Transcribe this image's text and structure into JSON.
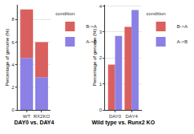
{
  "chart_data": [
    {
      "type": "bar",
      "x_label": "DAY0 vs. DAY4",
      "y_label": "Percentage of genome (%)",
      "categories": [
        "WT",
        "RX2KO"
      ],
      "stacked": true,
      "grid": true,
      "legend_title": "condition",
      "series": [
        {
          "name": "A->B",
          "color": "#8B80E6",
          "values": [
            4.6,
            2.9
          ]
        },
        {
          "name": "B->A",
          "color": "#D9605F",
          "values": [
            4.3,
            3.1
          ]
        }
      ],
      "ylim": [
        0,
        9.3
      ],
      "yticks": [
        0,
        2,
        4,
        6,
        8
      ]
    },
    {
      "type": "bar",
      "x_label": "Wild type vs. Runx2 KO",
      "y_label": "Percentage of genome (%)",
      "categories": [
        "DAY0",
        "DAY4"
      ],
      "stacked": false,
      "grid": true,
      "legend_title": "condition",
      "series": [
        {
          "name": "B->A",
          "color": "#D9605F",
          "values": [
            1.75,
            3.2
          ]
        },
        {
          "name": "A->B",
          "color": "#8B80E6",
          "values": [
            2.85,
            3.85
          ]
        }
      ],
      "ylim": [
        0,
        4.05
      ],
      "yticks": [
        0,
        1,
        2,
        3,
        4
      ]
    }
  ]
}
